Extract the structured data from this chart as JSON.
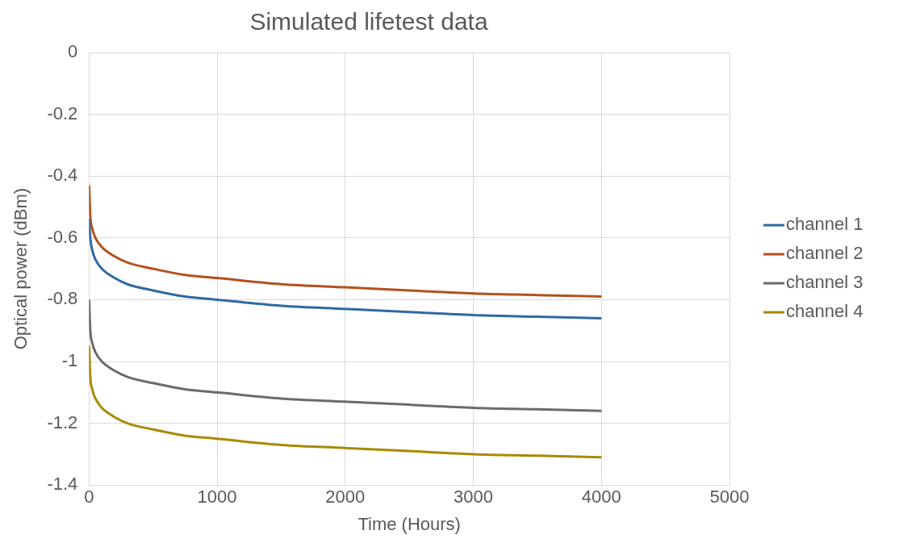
{
  "chart_data": {
    "type": "line",
    "title": "Simulated lifetest data",
    "xlabel": "Time (Hours)",
    "ylabel": "Optical power (dBm)",
    "x": [
      1,
      10,
      25,
      50,
      100,
      200,
      300,
      500,
      750,
      1000,
      1500,
      2000,
      2500,
      3000,
      3500,
      4000
    ],
    "series": [
      {
        "name": "channel 1",
        "color": "#2f6aa3",
        "values": [
          -0.54,
          -0.6,
          -0.64,
          -0.67,
          -0.7,
          -0.73,
          -0.75,
          -0.77,
          -0.79,
          -0.8,
          -0.82,
          -0.83,
          -0.84,
          -0.85,
          -0.855,
          -0.86
        ]
      },
      {
        "name": "channel 2",
        "color": "#b5501e",
        "values": [
          -0.43,
          -0.53,
          -0.57,
          -0.6,
          -0.63,
          -0.66,
          -0.68,
          -0.7,
          -0.72,
          -0.73,
          -0.75,
          -0.76,
          -0.77,
          -0.78,
          -0.785,
          -0.79
        ]
      },
      {
        "name": "channel 3",
        "color": "#6b6b6b",
        "values": [
          -0.8,
          -0.9,
          -0.94,
          -0.97,
          -1.0,
          -1.03,
          -1.05,
          -1.07,
          -1.09,
          -1.1,
          -1.12,
          -1.13,
          -1.14,
          -1.15,
          -1.155,
          -1.16
        ]
      },
      {
        "name": "channel 4",
        "color": "#a88a00",
        "values": [
          -0.95,
          -1.05,
          -1.09,
          -1.12,
          -1.15,
          -1.18,
          -1.2,
          -1.22,
          -1.24,
          -1.25,
          -1.27,
          -1.28,
          -1.29,
          -1.3,
          -1.305,
          -1.31
        ]
      }
    ],
    "xlim": [
      0,
      5000
    ],
    "xticks": [
      0,
      1000,
      2000,
      3000,
      4000,
      5000
    ],
    "ylim": [
      -1.4,
      0
    ],
    "yticks": [
      -1.4,
      -1.2,
      -1,
      -0.8,
      -0.6,
      -0.4,
      -0.2,
      0
    ],
    "grid": true,
    "legend": "right",
    "marker": "none",
    "line_style": "solid"
  }
}
